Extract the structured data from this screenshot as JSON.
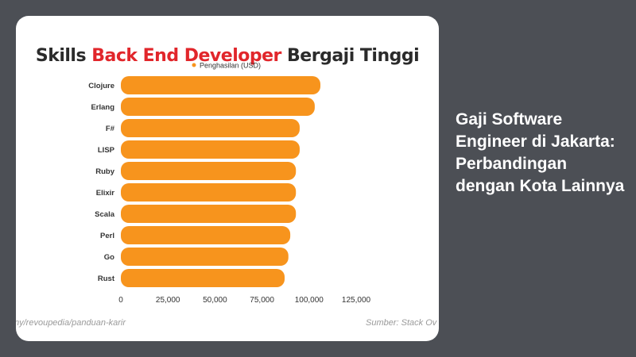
{
  "page": {
    "side_title": "Gaji Software Engineer di Jakarta: Perbandingan dengan Kota Lainnya"
  },
  "chart_title": {
    "part1": "Skills ",
    "part2": "Back End Developer",
    "part3": " Bergaji Tinggi"
  },
  "footer": {
    "left": "ny/revoupediа/panduan-karir",
    "right": "Sumber: Stack Ov"
  },
  "colors": {
    "bar": "#f7941d",
    "accent": "#e1262b",
    "background": "#4c4f55"
  },
  "chart_data": {
    "type": "bar",
    "orientation": "horizontal",
    "legend": {
      "label": "Penghasilan (USD)",
      "position": "top"
    },
    "categories": [
      "Clojure",
      "Erlang",
      "F#",
      "LISP",
      "Ruby",
      "Elixir",
      "Scala",
      "Perl",
      "Go",
      "Rust"
    ],
    "series": [
      {
        "name": "Penghasilan (USD)",
        "values": [
          106000,
          103000,
          95000,
          95000,
          93000,
          93000,
          93000,
          90000,
          89000,
          87000
        ]
      }
    ],
    "xticks": [
      0,
      25000,
      50000,
      75000,
      100000,
      125000
    ],
    "xtick_labels": [
      "0",
      "25,000",
      "50,000",
      "75,000",
      "100,000",
      "125,000"
    ],
    "xlim": [
      0,
      125000
    ],
    "grid": false
  }
}
